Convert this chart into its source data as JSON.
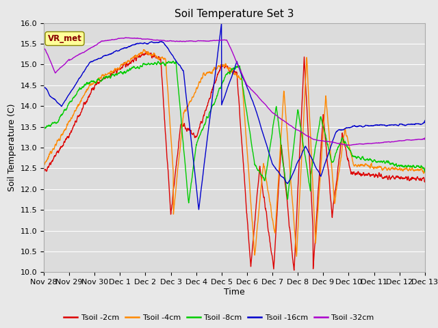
{
  "title": "Soil Temperature Set 3",
  "xlabel": "Time",
  "ylabel": "Soil Temperature (C)",
  "ylim": [
    10.0,
    16.0
  ],
  "yticks": [
    10.0,
    10.5,
    11.0,
    11.5,
    12.0,
    12.5,
    13.0,
    13.5,
    14.0,
    14.5,
    15.0,
    15.5,
    16.0
  ],
  "xtick_labels": [
    "Nov 28",
    "Nov 29",
    "Nov 30",
    "Dec 1",
    "Dec 2",
    "Dec 3",
    "Dec 4",
    "Dec 5",
    "Dec 6",
    "Dec 7",
    "Dec 8",
    "Dec 9",
    "Dec 10",
    "Dec 11",
    "Dec 12",
    "Dec 13"
  ],
  "colors": {
    "Tsoil -2cm": "#dd0000",
    "Tsoil -4cm": "#ff8800",
    "Tsoil -8cm": "#00cc00",
    "Tsoil -16cm": "#0000cc",
    "Tsoil -32cm": "#aa00cc"
  },
  "fig_bg": "#e8e8e8",
  "ax_bg": "#dcdcdc",
  "vr_box_fc": "#ffff99",
  "vr_box_ec": "#888800",
  "vr_text_color": "#880000",
  "grid_color": "#ffffff",
  "title_fs": 11,
  "label_fs": 9,
  "tick_fs": 8,
  "legend_fs": 8
}
